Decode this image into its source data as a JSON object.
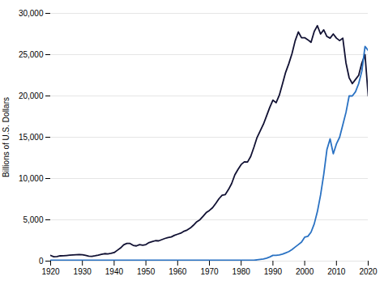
{
  "chart_data": {
    "type": "line",
    "x": [
      1920,
      1921,
      1922,
      1923,
      1924,
      1925,
      1926,
      1927,
      1928,
      1929,
      1930,
      1931,
      1932,
      1933,
      1934,
      1935,
      1936,
      1937,
      1938,
      1939,
      1940,
      1941,
      1942,
      1943,
      1944,
      1945,
      1946,
      1947,
      1948,
      1949,
      1950,
      1951,
      1952,
      1953,
      1954,
      1955,
      1956,
      1957,
      1958,
      1959,
      1960,
      1961,
      1962,
      1963,
      1964,
      1965,
      1966,
      1967,
      1968,
      1969,
      1970,
      1971,
      1972,
      1973,
      1974,
      1975,
      1976,
      1977,
      1978,
      1979,
      1980,
      1981,
      1982,
      1983,
      1984,
      1985,
      1986,
      1987,
      1988,
      1989,
      1990,
      1991,
      1992,
      1993,
      1994,
      1995,
      1996,
      1997,
      1998,
      1999,
      2000,
      2001,
      2002,
      2003,
      2004,
      2005,
      2006,
      2007,
      2008,
      2009,
      2010,
      2011,
      2012,
      2013,
      2014,
      2015,
      2016,
      2017,
      2018,
      2019,
      2020
    ],
    "series": [
      {
        "color": "#111133",
        "values": [
          688,
          522,
          549,
          638,
          648,
          680,
          714,
          740,
          769,
          805,
          778,
          693,
          600,
          577,
          640,
          718,
          815,
          906,
          879,
          941,
          1030,
          1310,
          1590,
          1970,
          2140,
          2140,
          1910,
          1839,
          1993,
          1928,
          2008,
          2250,
          2365,
          2475,
          2449,
          2601,
          2746,
          2862,
          2928,
          3121,
          3260,
          3391,
          3618,
          3770,
          4009,
          4361,
          4764,
          5008,
          5426,
          5876,
          6137,
          6466,
          6985,
          7551,
          7975,
          8060,
          8666,
          9385,
          10445,
          11110,
          11700,
          12018,
          11999,
          12677,
          13774,
          14968,
          15763,
          16571,
          17580,
          18621,
          19498,
          19179,
          20083,
          21454,
          22857,
          23908,
          25125,
          26677,
          27750,
          27050,
          27050,
          26800,
          26500,
          27800,
          28500,
          27500,
          28000,
          27200,
          27000,
          27500,
          27000,
          26700,
          27000,
          24000,
          22200,
          21500,
          22000,
          22500,
          24000,
          25000,
          20000
        ]
      },
      {
        "color": "#2a72c3",
        "values": [
          100,
          100,
          100,
          100,
          100,
          100,
          100,
          100,
          100,
          100,
          100,
          100,
          100,
          100,
          100,
          100,
          100,
          100,
          100,
          100,
          100,
          100,
          100,
          100,
          100,
          100,
          100,
          100,
          100,
          100,
          100,
          100,
          100,
          100,
          100,
          100,
          100,
          100,
          100,
          100,
          100,
          100,
          100,
          100,
          100,
          100,
          100,
          100,
          100,
          100,
          100,
          100,
          100,
          100,
          100,
          100,
          100,
          100,
          100,
          100,
          100,
          100,
          100,
          100,
          100,
          150,
          200,
          250,
          350,
          500,
          700,
          700,
          750,
          850,
          1000,
          1150,
          1400,
          1700,
          2000,
          2300,
          2900,
          3000,
          3500,
          4500,
          6000,
          8000,
          10500,
          13500,
          14800,
          13000,
          14200,
          15000,
          16500,
          18000,
          20000,
          20000,
          20500,
          21500,
          23000,
          26000,
          25500
        ]
      }
    ],
    "xlim": [
      1920,
      2020
    ],
    "xticks": [
      1920,
      1930,
      1940,
      1950,
      1960,
      1970,
      1980,
      1990,
      2000,
      2010,
      2020
    ],
    "ylim": [
      0,
      30000
    ],
    "yticks": [
      0,
      {
        "value": 5000,
        "label": "5,000"
      },
      {
        "value": 10000,
        "label": "10,000"
      },
      {
        "value": 15000,
        "label": "15,000"
      },
      {
        "value": 20000,
        "label": "20,000"
      },
      {
        "value": 25000,
        "label": "25,000"
      },
      {
        "value": 30000,
        "label": "30,000"
      }
    ],
    "ylabel": "Billions of U.S. Dollars",
    "grid": "y"
  }
}
